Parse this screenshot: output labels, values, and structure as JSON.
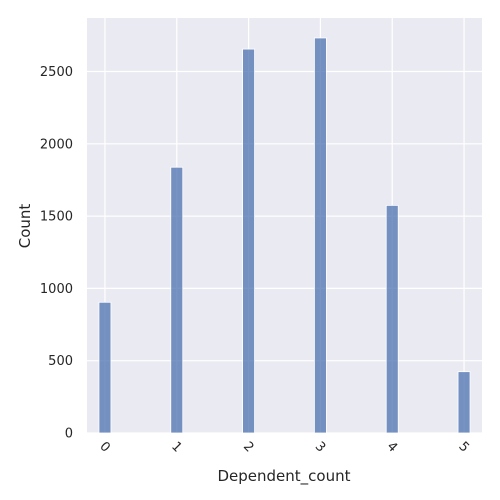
{
  "chart_data": {
    "type": "bar",
    "subtype": "histogram",
    "xlabel": "Dependent_count",
    "ylabel": "Count",
    "x_ticks": [
      0,
      1,
      2,
      3,
      4,
      5
    ],
    "x_tick_labels": [
      "0",
      "1",
      "2",
      "3",
      "4",
      "5"
    ],
    "x_tick_rotation_deg": 45,
    "xlim": [
      -0.25,
      5.25
    ],
    "y_ticks": [
      0,
      500,
      1000,
      1500,
      2000,
      2500
    ],
    "y_tick_labels": [
      "0",
      "500",
      "1000",
      "1500",
      "2000",
      "2500"
    ],
    "ylim": [
      0,
      2870
    ],
    "bins": [
      {
        "x": 0,
        "count": 904
      },
      {
        "x": 1,
        "count": 1838
      },
      {
        "x": 2,
        "count": 2655
      },
      {
        "x": 3,
        "count": 2732
      },
      {
        "x": 4,
        "count": 1574
      },
      {
        "x": 5,
        "count": 424
      }
    ],
    "bin_width": 0.1667,
    "grid": true,
    "background_color": "#eaeaf2",
    "grid_color": "#ffffff",
    "bar_color": "#4c72b0",
    "bar_alpha": 0.75,
    "bar_edge_color": "#ffffff"
  }
}
